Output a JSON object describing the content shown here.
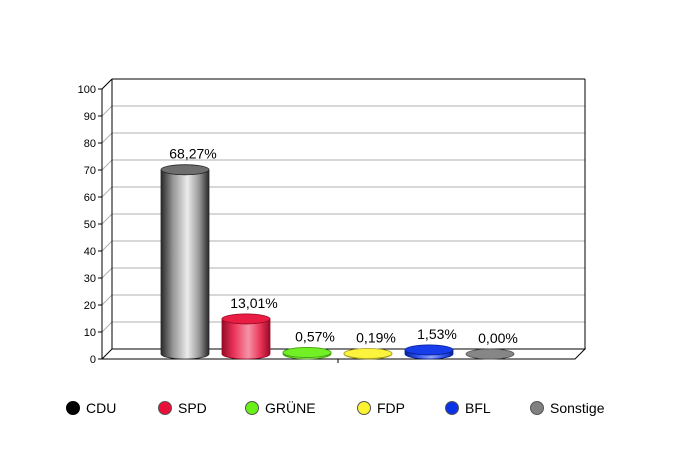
{
  "chart_data": {
    "type": "bar",
    "categories": [
      "CDU",
      "SPD",
      "GRÜNE",
      "FDP",
      "BFL",
      "Sonstige"
    ],
    "values": [
      68.27,
      13.01,
      0.57,
      0.19,
      1.53,
      0.0
    ],
    "value_labels": [
      "68,27%",
      "13,01%",
      "0,57%",
      "0,19%",
      "1,53%",
      "0,00%"
    ],
    "ylim": [
      0,
      100
    ],
    "yticks": [
      0,
      10,
      20,
      30,
      40,
      50,
      60,
      70,
      80,
      90,
      100
    ],
    "grid": true,
    "legend_position": "bottom",
    "colors": [
      "#000000",
      "#e8103a",
      "#6af019",
      "#fbf232",
      "#0a33e8",
      "#808080"
    ],
    "title": "",
    "xlabel": "",
    "ylabel": ""
  }
}
